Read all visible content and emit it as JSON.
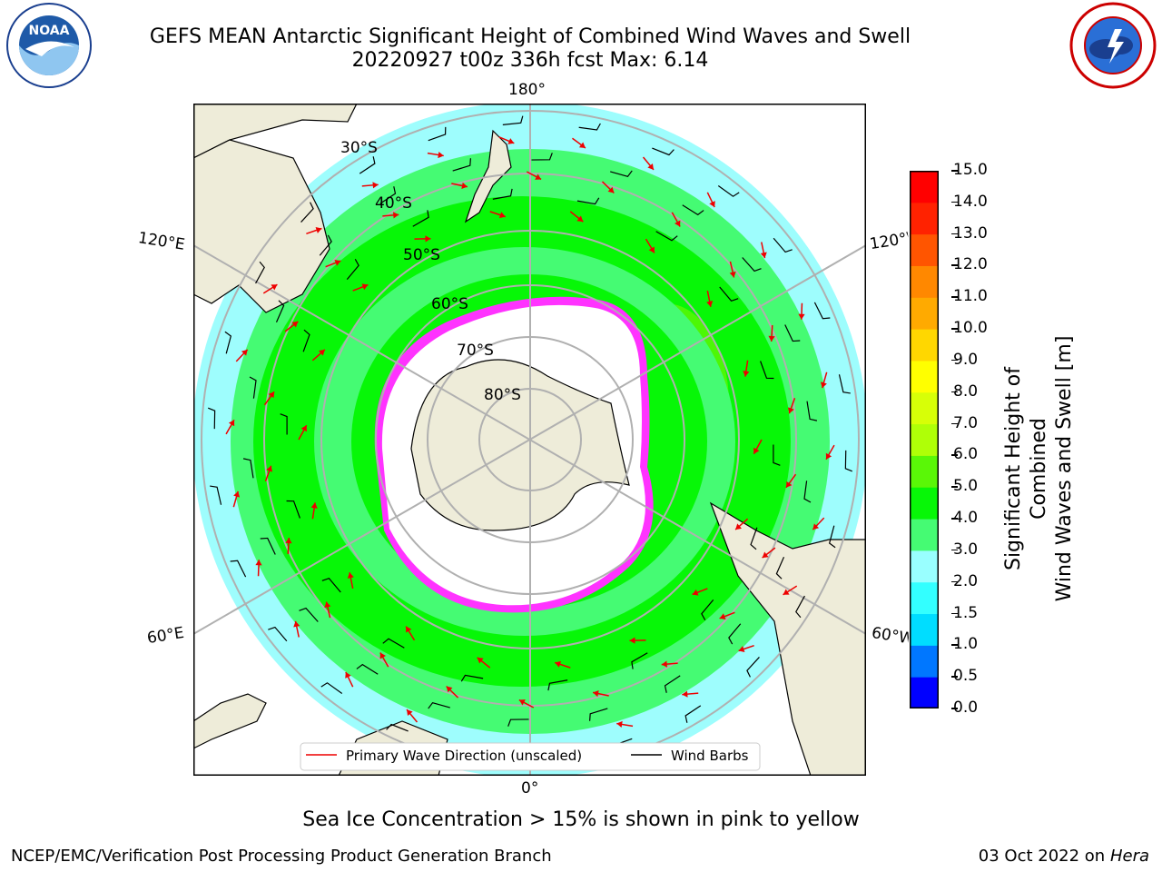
{
  "header": {
    "title_line1": "GEFS MEAN Antarctic Significant Height of Combined Wind Waves and Swell",
    "title_line2": "20220927 t00z 336h fcst   Max: 6.14"
  },
  "logos": {
    "left": {
      "name": "noaa-logo",
      "text": "NOAA",
      "ring_text": "NATIONAL OCEANIC AND ATMOSPHERIC ADMINISTRATION · U.S. DEPARTMENT OF COMMERCE"
    },
    "right": {
      "name": "nws-logo",
      "ring_text": "NATIONAL WEATHER SERVICE"
    }
  },
  "map": {
    "longitude_labels": {
      "top": "180°",
      "bottom": "0°",
      "left_upper": "120°E",
      "left_lower": "60°E",
      "right_upper": "120°W",
      "right_lower": "60°W"
    },
    "latitude_labels": [
      "30°S",
      "40°S",
      "50°S",
      "60°S",
      "70°S",
      "80°S"
    ],
    "legend": {
      "wave_dir": "Primary Wave Direction (unscaled)",
      "wind_barbs": "Wind Barbs"
    },
    "colors": {
      "ocean_low": "#9efdfd",
      "ocean_mid": "#45fb73",
      "ocean_high": "#07f707",
      "ocean_peak": "#7df707",
      "land": "#eeecd9",
      "ice_pink": "#ff33ff",
      "arrow": "#ee0000"
    }
  },
  "colorbar": {
    "label_line1": "Significant Height of Combined",
    "label_line2": "Wind Waves and Swell [m]",
    "ticks": [
      "0.0",
      "0.5",
      "1.0",
      "1.5",
      "2.0",
      "3.0",
      "4.0",
      "5.0",
      "6.0",
      "7.0",
      "8.0",
      "9.0",
      "10.0",
      "11.0",
      "12.0",
      "13.0",
      "14.0",
      "15.0"
    ],
    "colors": [
      "#0000ff",
      "#0077ff",
      "#00ddff",
      "#33ffff",
      "#99ffff",
      "#45fb73",
      "#07f707",
      "#5af707",
      "#afff07",
      "#d7ff07",
      "#ffff00",
      "#ffd700",
      "#ffaa00",
      "#ff8800",
      "#ff5500",
      "#ff2200",
      "#ff0000"
    ]
  },
  "caption": "Sea Ice Concentration > 15% is shown in pink to yellow",
  "footer": {
    "left": "NCEP/EMC/Verification Post Processing Product Generation Branch",
    "right_date": "03 Oct 2022 on ",
    "right_host": "Hera"
  }
}
